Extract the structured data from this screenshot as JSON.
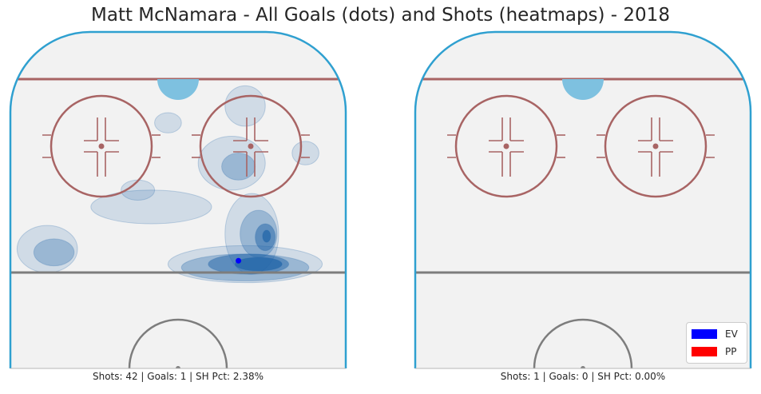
{
  "title": "Matt McNamara - All Goals (dots) and Shots (heatmaps) - 2018",
  "colors": {
    "rink_fill": "#f2f2f2",
    "boards": "#2fa0d0",
    "red_line": "#a86464",
    "blue_line": "#7d7d7d",
    "crease": "#7ec1e0",
    "heat": "#1f64a8",
    "ev": "#0000ff",
    "pp": "#ff0000"
  },
  "panels": [
    {
      "caption": "Shots: 42 | Goals: 1 | SH Pct: 2.38%",
      "shots": 42,
      "goals": 1,
      "sh_pct": "2.38%"
    },
    {
      "caption": "Shots: 1 | Goals: 0 | SH Pct: 0.00%",
      "shots": 1,
      "goals": 0,
      "sh_pct": "0.00%"
    }
  ],
  "legend": [
    {
      "label": "EV",
      "color": "#0000ff"
    },
    {
      "label": "PP",
      "color": "#ff0000"
    }
  ],
  "chart_data": {
    "type": "heatmap",
    "title": "Matt McNamara - All Goals (dots) and Shots (heatmaps) - 2018",
    "legend_position": "bottom-right",
    "panels": [
      {
        "caption": "Shots: 42 | Goals: 1 | SH Pct: 2.38%",
        "goals": [
          {
            "strength": "EV",
            "x": 0.68,
            "y": 0.68
          }
        ],
        "density_levels": [
          [
            {
              "x": 0.7,
              "y": 0.69,
              "rx": 0.23,
              "ry": 0.055
            },
            {
              "x": 0.11,
              "y": 0.645,
              "rx": 0.09,
              "ry": 0.07
            },
            {
              "x": 0.72,
              "y": 0.6,
              "rx": 0.08,
              "ry": 0.12
            },
            {
              "x": 0.66,
              "y": 0.39,
              "rx": 0.1,
              "ry": 0.08
            },
            {
              "x": 0.42,
              "y": 0.52,
              "rx": 0.18,
              "ry": 0.05
            },
            {
              "x": 0.7,
              "y": 0.22,
              "rx": 0.06,
              "ry": 0.06
            },
            {
              "x": 0.47,
              "y": 0.27,
              "rx": 0.04,
              "ry": 0.03
            },
            {
              "x": 0.38,
              "y": 0.47,
              "rx": 0.05,
              "ry": 0.03
            },
            {
              "x": 0.88,
              "y": 0.36,
              "rx": 0.04,
              "ry": 0.035
            }
          ],
          [
            {
              "x": 0.7,
              "y": 0.7,
              "rx": 0.19,
              "ry": 0.04
            },
            {
              "x": 0.13,
              "y": 0.655,
              "rx": 0.06,
              "ry": 0.04
            },
            {
              "x": 0.74,
              "y": 0.6,
              "rx": 0.055,
              "ry": 0.07
            },
            {
              "x": 0.68,
              "y": 0.4,
              "rx": 0.05,
              "ry": 0.04
            }
          ],
          [
            {
              "x": 0.71,
              "y": 0.69,
              "rx": 0.12,
              "ry": 0.03
            },
            {
              "x": 0.76,
              "y": 0.61,
              "rx": 0.03,
              "ry": 0.04
            }
          ],
          [
            {
              "x": 0.74,
              "y": 0.69,
              "rx": 0.07,
              "ry": 0.02
            },
            {
              "x": 0.764,
              "y": 0.607,
              "rx": 0.012,
              "ry": 0.018
            }
          ]
        ]
      },
      {
        "caption": "Shots: 1 | Goals: 0 | SH Pct: 0.00%",
        "goals": [],
        "density_levels": []
      }
    ]
  }
}
